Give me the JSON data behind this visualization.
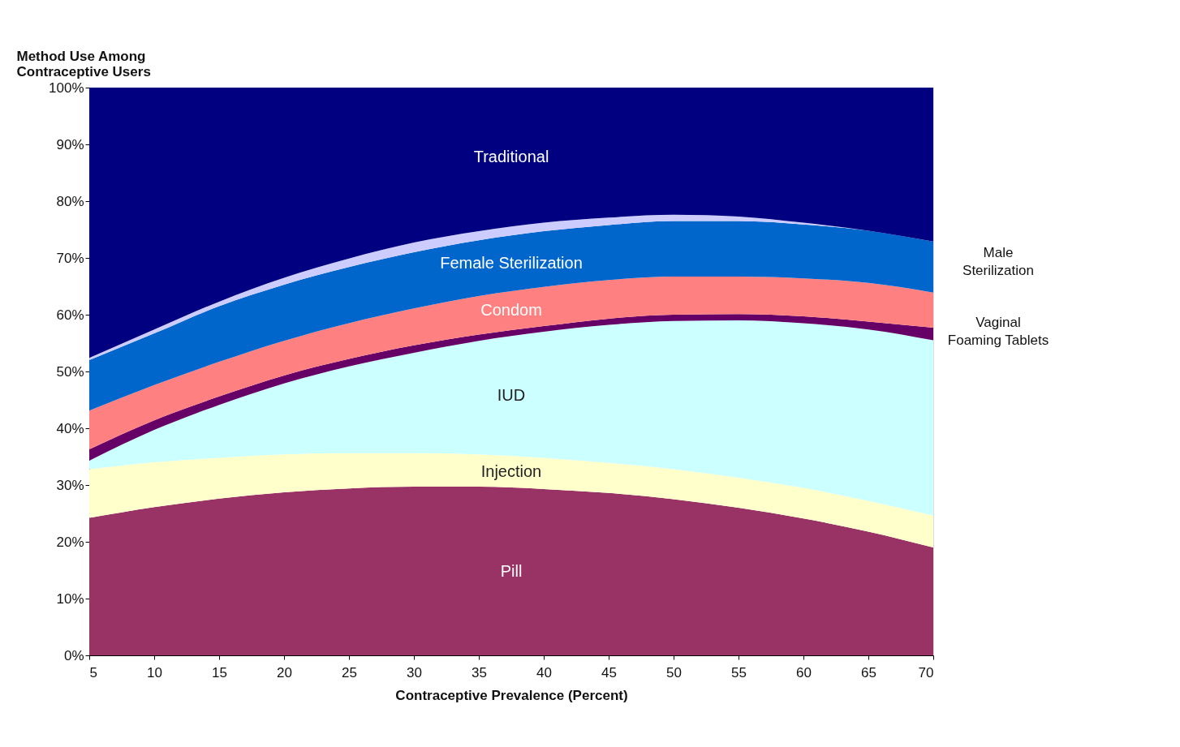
{
  "chart_data": {
    "type": "area",
    "stacked": true,
    "ylabel": "Method Use Among\nContraceptive Users",
    "xlabel": "Contraceptive Prevalence (Percent)",
    "x": [
      5,
      10,
      15,
      20,
      25,
      30,
      35,
      40,
      45,
      50,
      55,
      60,
      65,
      70
    ],
    "xlim": [
      5,
      70
    ],
    "xticks": [
      5,
      10,
      15,
      20,
      25,
      30,
      35,
      40,
      45,
      50,
      55,
      60,
      65,
      70
    ],
    "ylim": [
      0,
      100
    ],
    "yticks": [
      {
        "value": 0,
        "label": "0%"
      },
      {
        "value": 10,
        "label": "10%"
      },
      {
        "value": 20,
        "label": "20%"
      },
      {
        "value": 30,
        "label": "30%"
      },
      {
        "value": 40,
        "label": "40%"
      },
      {
        "value": 50,
        "label": "50%"
      },
      {
        "value": 60,
        "label": "60%"
      },
      {
        "value": 70,
        "label": "70%"
      },
      {
        "value": 80,
        "label": "80%"
      },
      {
        "value": 90,
        "label": "90%"
      },
      {
        "value": 100,
        "label": "100%"
      }
    ],
    "grid": false,
    "series": [
      {
        "name": "Pill",
        "color": "#993366",
        "values": [
          24.2,
          26.1,
          27.6,
          28.7,
          29.4,
          29.7,
          29.7,
          29.3,
          28.6,
          27.5,
          26.0,
          24.1,
          21.8,
          19.0
        ]
      },
      {
        "name": "Injection",
        "color": "#ffffcc",
        "values": [
          8.6,
          7.9,
          7.2,
          6.7,
          6.2,
          5.9,
          5.7,
          5.5,
          5.3,
          5.3,
          5.3,
          5.4,
          5.4,
          5.6
        ]
      },
      {
        "name": "IUD",
        "color": "#ccffff",
        "values": [
          1.5,
          5.7,
          9.3,
          12.5,
          15.3,
          17.7,
          20.0,
          22.2,
          24.3,
          26.1,
          27.7,
          29.0,
          30.2,
          30.9
        ]
      },
      {
        "name": "Vaginal Foaming Tablets",
        "color": "#660066",
        "values": [
          2.0,
          1.7,
          1.5,
          1.4,
          1.3,
          1.3,
          1.1,
          1.0,
          1.1,
          1.1,
          1.1,
          1.2,
          1.4,
          2.2
        ]
      },
      {
        "name": "Condom",
        "color": "#ff8080",
        "values": [
          6.8,
          6.2,
          6.1,
          6.1,
          6.3,
          6.5,
          6.8,
          6.9,
          6.8,
          6.7,
          6.6,
          6.7,
          6.8,
          6.2
        ]
      },
      {
        "name": "Female Sterilization",
        "color": "#0066cc",
        "values": [
          8.9,
          9.1,
          9.8,
          9.9,
          9.9,
          9.9,
          9.8,
          9.8,
          9.7,
          9.8,
          9.8,
          9.5,
          9.2,
          9.0
        ]
      },
      {
        "name": "Male Sterilization",
        "color": "#ccccff",
        "values": [
          0.4,
          0.7,
          0.8,
          1.2,
          1.5,
          1.7,
          1.6,
          1.5,
          1.3,
          1.1,
          0.8,
          0.3,
          0.0,
          0.0
        ]
      },
      {
        "name": "Traditional",
        "color": "#000080",
        "values": [
          47.6,
          42.6,
          37.7,
          33.5,
          30.1,
          27.3,
          25.3,
          23.8,
          22.9,
          22.4,
          22.7,
          23.8,
          25.2,
          27.1
        ]
      }
    ]
  }
}
